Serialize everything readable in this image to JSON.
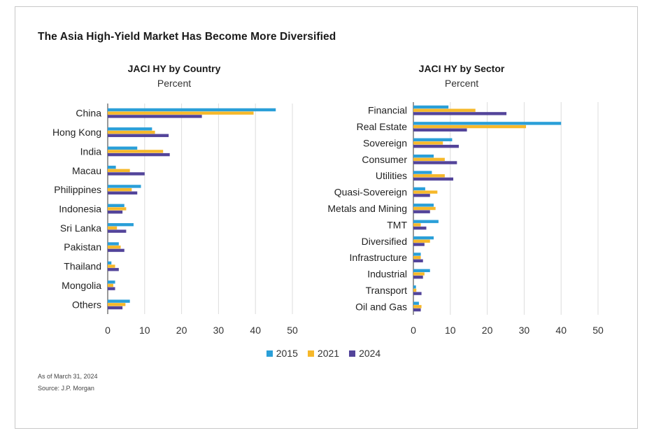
{
  "page": {
    "title": "The Asia High-Yield Market Has Become More Diversified",
    "note_date": "As of March 31, 2024",
    "note_source": "Source: J.P. Morgan"
  },
  "legend": [
    {
      "name": "2015",
      "color": "#2a9fd8"
    },
    {
      "name": "2021",
      "color": "#f6b82a"
    },
    {
      "name": "2024",
      "color": "#53449a"
    }
  ],
  "chart_data": [
    {
      "type": "bar",
      "orientation": "horizontal",
      "title": "JACI HY by Country",
      "subtitle": "Percent",
      "xlim": [
        0,
        50
      ],
      "xticks": [
        0,
        10,
        20,
        30,
        40,
        50
      ],
      "grid": true,
      "categories": [
        "China",
        "Hong Kong",
        "India",
        "Macau",
        "Philippines",
        "Indonesia",
        "Sri Lanka",
        "Pakistan",
        "Thailand",
        "Mongolia",
        "Others"
      ],
      "series": [
        {
          "name": "2015",
          "color": "#2a9fd8",
          "values": [
            45.5,
            12,
            8,
            2.2,
            9,
            4.5,
            7,
            3,
            1,
            2,
            6
          ]
        },
        {
          "name": "2021",
          "color": "#f6b82a",
          "values": [
            39.5,
            12.8,
            15,
            6,
            6.5,
            5,
            2.5,
            3.5,
            2,
            1.5,
            4.8
          ]
        },
        {
          "name": "2024",
          "color": "#53449a",
          "values": [
            25.5,
            16.5,
            16.8,
            10,
            8,
            4,
            5,
            4.5,
            3,
            2,
            4
          ]
        }
      ]
    },
    {
      "type": "bar",
      "orientation": "horizontal",
      "title": "JACI HY by Sector",
      "subtitle": "Percent",
      "xlim": [
        0,
        50
      ],
      "xticks": [
        0,
        10,
        20,
        30,
        40,
        50
      ],
      "grid": true,
      "categories": [
        "Financial",
        "Real Estate",
        "Sovereign",
        "Consumer",
        "Utilities",
        "Quasi-Sovereign",
        "Metals and Mining",
        "TMT",
        "Diversified",
        "Infrastructure",
        "Industrial",
        "Transport",
        "Oil and Gas"
      ],
      "series": [
        {
          "name": "2015",
          "color": "#2a9fd8",
          "values": [
            9.5,
            40,
            10.5,
            5.5,
            5,
            3.2,
            5.5,
            6.8,
            5.5,
            2,
            4.5,
            0.7,
            1.5
          ]
        },
        {
          "name": "2021",
          "color": "#f6b82a",
          "values": [
            16.8,
            30.5,
            8,
            8.5,
            8.5,
            6.5,
            6,
            2,
            4.5,
            2,
            3,
            0.8,
            2.2
          ]
        },
        {
          "name": "2024",
          "color": "#53449a",
          "values": [
            25.2,
            14.5,
            12.3,
            11.8,
            10.8,
            4.5,
            4.5,
            3.5,
            3,
            2.6,
            2.6,
            2.2,
            2
          ]
        }
      ]
    }
  ]
}
